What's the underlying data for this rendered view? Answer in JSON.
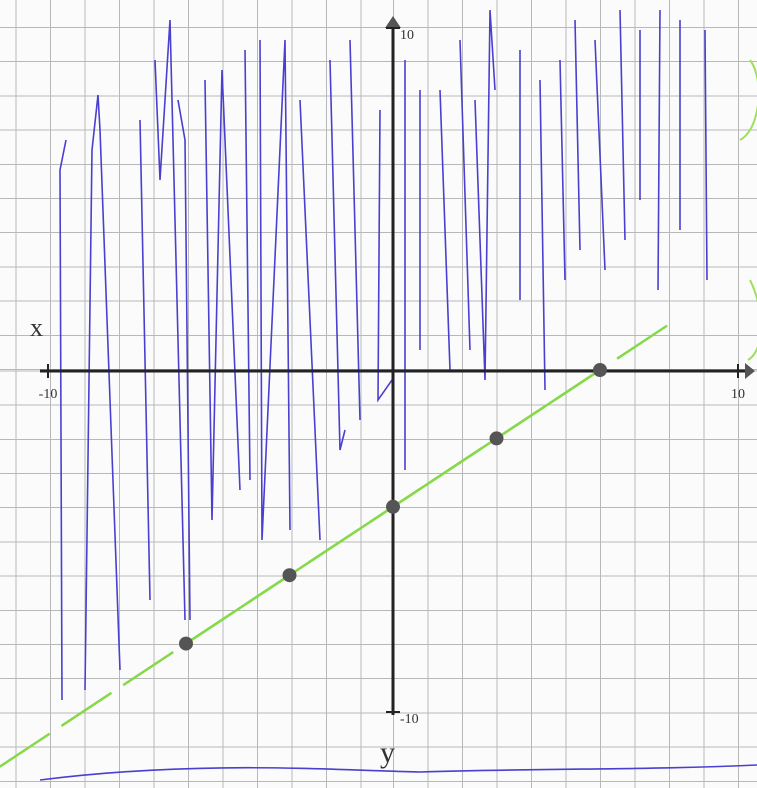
{
  "chart_data": {
    "type": "line",
    "x_label": "x",
    "y_label": "y",
    "x": [
      -6,
      -3,
      0,
      3,
      6
    ],
    "values": [
      -8,
      -6,
      -4,
      -2,
      0
    ],
    "color": "#86d94a",
    "point_color": "#555555",
    "xlim": [
      -10,
      10
    ],
    "ylim": [
      -10,
      10
    ],
    "xticks": [
      -10,
      10
    ],
    "yticks": [
      -10,
      10
    ]
  }
}
